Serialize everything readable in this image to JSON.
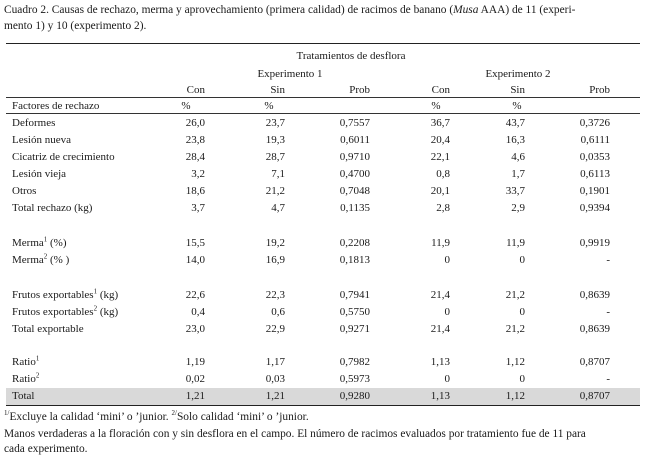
{
  "caption": {
    "prefix": "Cuadro 2. Causas de rechazo, merma y aprovechamiento (primera calidad) de racimos de banano (",
    "species": "Musa",
    "suffix": " AAA) de 11 (experi-",
    "line2": "mento 1) y 10 (experimento 2)."
  },
  "header": {
    "group_title": "Tratamientos de desflora",
    "exp1": "Experimento 1",
    "exp2": "Experimento 2",
    "columns": [
      "Con",
      "Sin",
      "Prob",
      "Con",
      "Sin",
      "Prob"
    ],
    "factor_label": "Factores de rechazo",
    "percent_1": "%",
    "percent_2": "%",
    "percent_3": "%",
    "percent_4": "%"
  },
  "rows": [
    {
      "label": "Deformes",
      "sup": "",
      "unit": "",
      "vals": [
        "26,0",
        "23,7",
        "0,7557",
        "36,7",
        "43,7",
        "0,3726"
      ]
    },
    {
      "label": "Lesión nueva",
      "sup": "",
      "unit": "",
      "vals": [
        "23,8",
        "19,3",
        "0,6011",
        "20,4",
        "16,3",
        "0,6111"
      ]
    },
    {
      "label": "Cicatriz de crecimiento",
      "sup": "",
      "unit": "",
      "vals": [
        "28,4",
        "28,7",
        "0,9710",
        "22,1",
        "4,6",
        "0,0353"
      ]
    },
    {
      "label": "Lesión vieja",
      "sup": "",
      "unit": "",
      "vals": [
        "3,2",
        "7,1",
        "0,4700",
        "0,8",
        "1,7",
        "0,6113"
      ]
    },
    {
      "label": "Otros",
      "sup": "",
      "unit": "",
      "vals": [
        "18,6",
        "21,2",
        "0,7048",
        "20,1",
        "33,7",
        "0,1901"
      ]
    },
    {
      "label": "Total rechazo (kg)",
      "sup": "",
      "unit": "",
      "vals": [
        "3,7",
        "4,7",
        "0,1135",
        "2,8",
        "2,9",
        "0,9394"
      ]
    },
    {
      "label": "Merma",
      "sup": "1",
      "unit": " (%)",
      "vals": [
        "15,5",
        "19,2",
        "0,2208",
        "11,9",
        "11,9",
        "0,9919"
      ]
    },
    {
      "label": "Merma",
      "sup": "2",
      "unit": " (% )",
      "vals": [
        "14,0",
        "16,9",
        "0,1813",
        "0",
        "0",
        "-"
      ]
    },
    {
      "label": "Frutos exportables",
      "sup": "1",
      "unit": " (kg)",
      "vals": [
        "22,6",
        "22,3",
        "0,7941",
        "21,4",
        "21,2",
        "0,8639"
      ]
    },
    {
      "label": "Frutos exportables",
      "sup": "2",
      "unit": " (kg)",
      "vals": [
        "0,4",
        "0,6",
        "0,5750",
        "0",
        "0",
        "-"
      ]
    },
    {
      "label": "Total  exportable",
      "sup": "",
      "unit": "",
      "vals": [
        "23,0",
        "22,9",
        "0,9271",
        "21,4",
        "21,2",
        "0,8639"
      ]
    },
    {
      "label": "Ratio",
      "sup": "1",
      "unit": "",
      "vals": [
        "1,19",
        "1,17",
        "0,7982",
        "1,13",
        "1,12",
        "0,8707"
      ]
    },
    {
      "label": "Ratio",
      "sup": "2",
      "unit": "",
      "vals": [
        "0,02",
        "0,03",
        "0,5973",
        "0",
        "0",
        "-"
      ]
    },
    {
      "label": "Total",
      "sup": "",
      "unit": "",
      "vals": [
        "1,21",
        "1,21",
        "0,9280",
        "1,13",
        "1,12",
        "0,8707"
      ]
    }
  ],
  "footnotes": {
    "note1_sup": "1/",
    "note1": "Excluye la calidad ‘mini’ o ’junior. ",
    "note2_sup": "2/",
    "note2": "Solo calidad ‘mini’ o ’junior.",
    "line2": "Manos verdaderas a la floración con y sin desflora en el campo. El número de racimos evaluados por tratamiento fue de 11 para",
    "line3": "cada experimento."
  },
  "colors": {
    "total_band": "#d9d9d9",
    "rule": "#222222"
  }
}
